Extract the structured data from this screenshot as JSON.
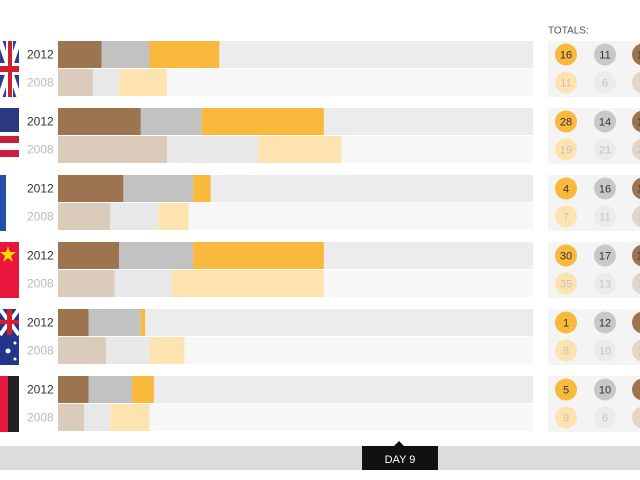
{
  "chart_data": {
    "type": "medal-bars",
    "totals_label": "TOTALS:",
    "footer_label": "DAY 9",
    "xlim": [
      0,
      109
    ],
    "colors": {
      "bronze": "#9c7550",
      "silver": "#c2c2c2",
      "gold": "#f8b93c"
    },
    "faded_colors": {
      "bronze": "#dacbbb",
      "silver": "#e8e8e8",
      "gold": "#fde3b0"
    },
    "countries": [
      {
        "rows": [
          {
            "year": "2012",
            "bronze": 10,
            "silver": 11,
            "gold": 16
          },
          {
            "year": "2008",
            "bronze": 8,
            "silver": 6,
            "gold": 11
          }
        ]
      },
      {
        "rows": [
          {
            "year": "2012",
            "bronze": 19,
            "silver": 14,
            "gold": 28
          },
          {
            "year": "2008",
            "bronze": 25,
            "silver": 21,
            "gold": 19
          }
        ]
      },
      {
        "rows": [
          {
            "year": "2012",
            "bronze": 15,
            "silver": 16,
            "gold": 4
          },
          {
            "year": "2008",
            "bronze": 12,
            "silver": 11,
            "gold": 7
          }
        ]
      },
      {
        "rows": [
          {
            "year": "2012",
            "bronze": 14,
            "silver": 17,
            "gold": 30
          },
          {
            "year": "2008",
            "bronze": 13,
            "silver": 13,
            "gold": 35
          }
        ]
      },
      {
        "rows": [
          {
            "year": "2012",
            "bronze": 7,
            "silver": 12,
            "gold": 1
          },
          {
            "year": "2008",
            "bronze": 11,
            "silver": 10,
            "gold": 8
          }
        ]
      },
      {
        "rows": [
          {
            "year": "2012",
            "bronze": 7,
            "silver": 10,
            "gold": 5
          },
          {
            "year": "2008",
            "bronze": 6,
            "silver": 6,
            "gold": 9
          }
        ]
      }
    ]
  }
}
